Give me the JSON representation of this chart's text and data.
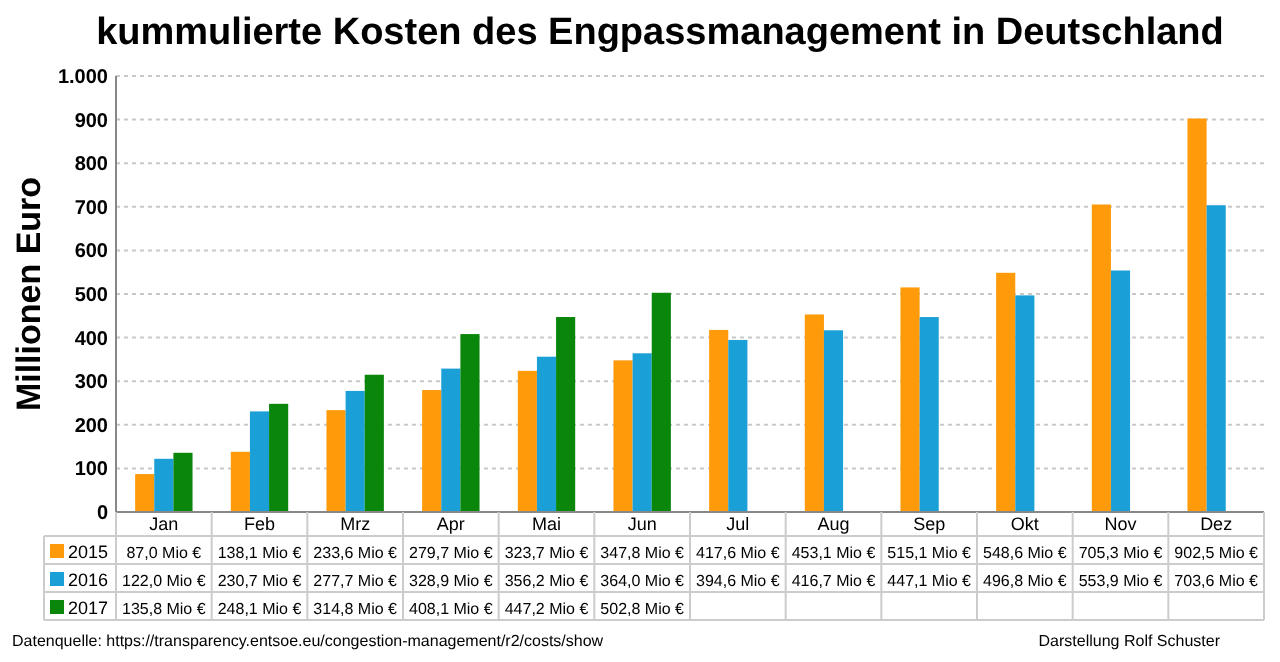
{
  "chart_data": {
    "type": "bar",
    "title": "kummulierte Kosten des Engpassmanagement in Deutschland",
    "ylabel": "Millionen Euro",
    "categories": [
      "Jan",
      "Feb",
      "Mrz",
      "Apr",
      "Mai",
      "Jun",
      "Jul",
      "Aug",
      "Sep",
      "Okt",
      "Nov",
      "Dez"
    ],
    "series": [
      {
        "name": "2015",
        "color": "#ff9a0a",
        "values": [
          87.0,
          138.1,
          233.6,
          279.7,
          323.7,
          347.8,
          417.6,
          453.1,
          515.1,
          548.6,
          705.3,
          902.5
        ],
        "value_labels": [
          "87,0 Mio €",
          "138,1 Mio €",
          "233,6 Mio €",
          "279,7 Mio €",
          "323,7 Mio €",
          "347,8 Mio €",
          "417,6 Mio €",
          "453,1 Mio €",
          "515,1 Mio €",
          "548,6 Mio €",
          "705,3 Mio €",
          "902,5 Mio €"
        ]
      },
      {
        "name": "2016",
        "color": "#1a9fd6",
        "values": [
          122.0,
          230.7,
          277.7,
          328.9,
          356.2,
          364.0,
          394.6,
          416.7,
          447.1,
          496.8,
          553.9,
          703.6
        ],
        "value_labels": [
          "122,0 Mio €",
          "230,7 Mio €",
          "277,7 Mio €",
          "328,9 Mio €",
          "356,2 Mio €",
          "364,0 Mio €",
          "394,6 Mio €",
          "416,7 Mio €",
          "447,1 Mio €",
          "496,8 Mio €",
          "553,9 Mio €",
          "703,6 Mio €"
        ]
      },
      {
        "name": "2017",
        "color": "#0a860a",
        "values": [
          135.8,
          248.1,
          314.8,
          408.1,
          447.2,
          502.8,
          null,
          null,
          null,
          null,
          null,
          null
        ],
        "value_labels": [
          "135,8 Mio €",
          "248,1 Mio €",
          "314,8 Mio €",
          "408,1 Mio €",
          "447,2 Mio €",
          "502,8 Mio €",
          null,
          null,
          null,
          null,
          null,
          null
        ]
      }
    ],
    "ylim": [
      0,
      1000
    ],
    "yticks": [
      0,
      100,
      200,
      300,
      400,
      500,
      600,
      700,
      800,
      900,
      {
        "value": 1000,
        "label": "1.000"
      }
    ],
    "grid": "y",
    "legend": "bottom",
    "annotations": [
      "Datenquelle:  https://transparency.entsoe.eu/congestion-management/r2/costs/show",
      "Darstellung  Rolf Schuster"
    ]
  }
}
